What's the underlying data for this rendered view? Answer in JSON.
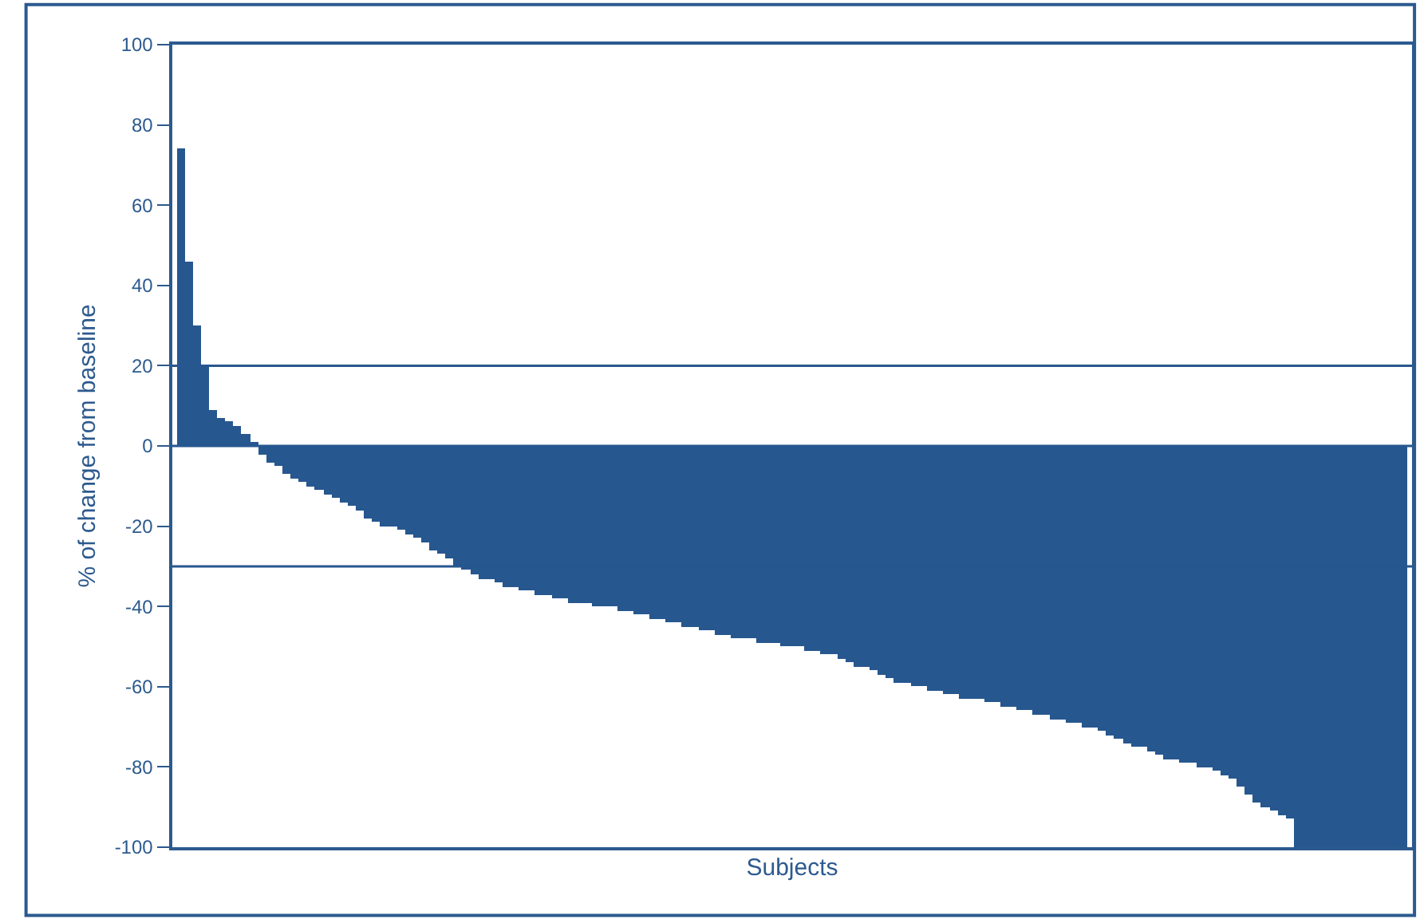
{
  "chart_data": {
    "type": "bar",
    "xlabel": "Subjects",
    "ylabel": "% of change from baseline",
    "color": "#27578f",
    "categories": [
      null,
      null,
      null,
      null,
      null,
      null,
      null,
      null,
      null,
      null,
      null,
      null,
      null,
      null,
      null,
      null,
      null,
      null,
      null,
      null,
      null,
      null,
      null,
      null,
      null,
      null,
      null,
      null,
      null,
      null,
      null,
      null,
      null,
      null,
      null,
      null,
      null,
      null,
      null,
      null,
      null,
      null,
      null,
      null,
      null,
      null,
      null,
      null,
      null,
      null,
      null,
      null,
      null,
      null,
      null,
      null,
      null,
      null,
      null,
      null,
      null,
      null,
      null,
      null,
      null,
      null,
      null,
      null,
      null,
      null,
      null,
      null,
      null,
      null,
      null,
      null,
      null,
      null,
      null,
      null,
      null,
      null,
      null,
      null,
      null,
      null,
      null,
      null,
      null,
      null,
      null,
      null,
      null,
      null,
      null,
      null,
      null,
      null,
      null,
      null,
      null,
      null,
      null,
      null,
      null,
      null,
      null,
      null,
      null,
      null,
      null,
      null,
      null,
      null,
      null,
      null,
      null,
      null,
      null,
      null,
      null,
      null,
      null,
      null,
      null,
      null,
      null,
      null,
      null,
      null,
      null,
      null,
      null,
      null,
      null,
      null,
      null,
      null,
      null,
      null,
      null,
      null,
      null,
      null,
      null,
      null,
      null,
      null,
      null,
      null,
      null
    ],
    "values": [
      74,
      46,
      30,
      20,
      9,
      7,
      6,
      5,
      3,
      1,
      -2,
      -4,
      -5,
      -7,
      -8,
      -9,
      -10,
      -11,
      -12,
      -13,
      -14,
      -15,
      -16,
      -18,
      -19,
      -20,
      -20,
      -21,
      -22,
      -23,
      -24,
      -26,
      -27,
      -28,
      -30,
      -31,
      -32,
      -33,
      -33,
      -34,
      -35,
      -35,
      -36,
      -36,
      -37,
      -37,
      -38,
      -38,
      -39,
      -39,
      -39,
      -40,
      -40,
      -40,
      -41,
      -41,
      -42,
      -42,
      -43,
      -43,
      -44,
      -44,
      -45,
      -45,
      -46,
      -46,
      -47,
      -47,
      -48,
      -48,
      -48,
      -49,
      -49,
      -49,
      -50,
      -50,
      -50,
      -51,
      -51,
      -52,
      -52,
      -53,
      -54,
      -55,
      -55,
      -56,
      -57,
      -58,
      -59,
      -59,
      -60,
      -60,
      -61,
      -61,
      -62,
      -62,
      -63,
      -63,
      -63,
      -64,
      -64,
      -65,
      -65,
      -66,
      -66,
      -67,
      -67,
      -68,
      -68,
      -69,
      -69,
      -70,
      -70,
      -71,
      -72,
      -73,
      -74,
      -75,
      -75,
      -76,
      -77,
      -78,
      -78,
      -79,
      -79,
      -80,
      -80,
      -81,
      -82,
      -83,
      -85,
      -87,
      -89,
      -90,
      -91,
      -92,
      -93,
      -100,
      -100,
      -100,
      -100,
      -100,
      -100,
      -100,
      -100,
      -100,
      -100,
      -100,
      -100,
      -100,
      -100
    ],
    "ylim": [
      -100,
      100
    ],
    "yticks": [
      -100,
      -80,
      -60,
      -40,
      -20,
      0,
      20,
      40,
      60,
      80,
      100
    ],
    "ref_lines": [
      {
        "axis": "y",
        "value": 20,
        "color": "#27578f"
      },
      {
        "axis": "y",
        "value": 0,
        "color": "#27578f"
      },
      {
        "axis": "y",
        "value": -30,
        "color": "#27578f"
      }
    ]
  }
}
